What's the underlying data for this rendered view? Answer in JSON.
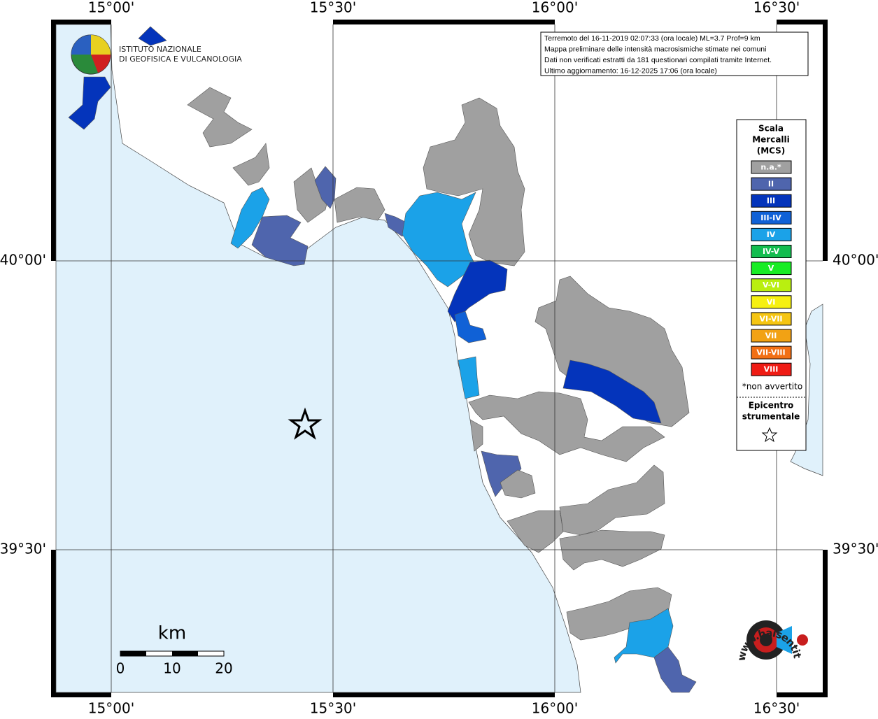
{
  "map": {
    "lon_labels": [
      "15°00'",
      "15°30'",
      "16°00'",
      "16°30'"
    ],
    "lat_labels": [
      "40°00'",
      "39°30'"
    ],
    "info": [
      "Terremoto del 16-11-2019 02:07:33 (ora locale) ML=3.7 Prof=9 km",
      "Mappa preliminare delle intensità macrosismiche stimate nei comuni",
      "Dati non verificati estratti da 181 questionari compilati tramite Internet.",
      "Ultimo aggiornamento: 16-12-2025 17:06 (ora locale)"
    ],
    "institute": [
      "ISTITUTO NAZIONALE",
      "DI GEOFISICA E VULCANOLOGIA"
    ],
    "legend": {
      "title": [
        "Scala",
        "Mercalli",
        "(MCS)"
      ],
      "classes": [
        {
          "label": "n.a.*",
          "color": "#a0a0a0"
        },
        {
          "label": "II",
          "color": "#4f65ad"
        },
        {
          "label": "III",
          "color": "#0434bb"
        },
        {
          "label": "III-IV",
          "color": "#1061d6"
        },
        {
          "label": "IV",
          "color": "#1ba2e8"
        },
        {
          "label": "IV-V",
          "color": "#12bd4f"
        },
        {
          "label": "V",
          "color": "#18ec25"
        },
        {
          "label": "V-VI",
          "color": "#b9ef10"
        },
        {
          "label": "VI",
          "color": "#f6f011"
        },
        {
          "label": "VI-VII",
          "color": "#f5c512"
        },
        {
          "label": "VII",
          "color": "#f2a214"
        },
        {
          "label": "VII-VIII",
          "color": "#f26f14"
        },
        {
          "label": "VIII",
          "color": "#ef1b14"
        }
      ],
      "note": "*non avvertito",
      "epicenter": [
        "Epicentro",
        "strumentale"
      ]
    },
    "scale": {
      "unit": "km",
      "ticks": [
        "0",
        "10",
        "20"
      ]
    },
    "brand": "www.haisentitoilterremoto.it"
  }
}
